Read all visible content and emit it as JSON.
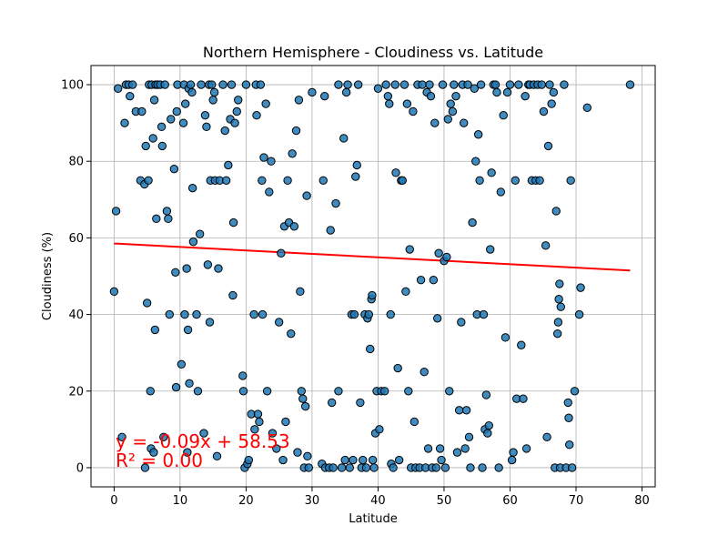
{
  "chart_data": {
    "type": "scatter",
    "title": "Northern Hemisphere - Cloudiness vs. Latitude",
    "xlabel": "Latitude",
    "ylabel": "Cloudiness (%)",
    "xlim": [
      -3.5,
      82
    ],
    "ylim": [
      -5,
      105
    ],
    "xticks": [
      0,
      10,
      20,
      30,
      40,
      50,
      60,
      70,
      80
    ],
    "yticks": [
      0,
      20,
      40,
      60,
      80,
      100
    ],
    "grid": true,
    "point_color": "#1f77b4",
    "point_edge_color": "#000000",
    "regression": {
      "slope": -0.09,
      "intercept": 58.53,
      "x_range": [
        0,
        78.2
      ],
      "color": "#ff0000",
      "equation_text": "y = -0.09x + 58.53",
      "r2_text": "R² = 0.00"
    },
    "points": [
      [
        0.0,
        46
      ],
      [
        0.3,
        67
      ],
      [
        0.6,
        99
      ],
      [
        1.2,
        8
      ],
      [
        1.6,
        90
      ],
      [
        1.8,
        100
      ],
      [
        2.2,
        100
      ],
      [
        2.4,
        97
      ],
      [
        2.8,
        100
      ],
      [
        3.3,
        93
      ],
      [
        4.0,
        75
      ],
      [
        4.2,
        93
      ],
      [
        4.6,
        74
      ],
      [
        4.7,
        0
      ],
      [
        4.8,
        84
      ],
      [
        5.0,
        43
      ],
      [
        5.2,
        75
      ],
      [
        5.3,
        100
      ],
      [
        5.5,
        20
      ],
      [
        5.6,
        5
      ],
      [
        5.7,
        100
      ],
      [
        5.9,
        86
      ],
      [
        6.0,
        4
      ],
      [
        6.1,
        96
      ],
      [
        6.2,
        36
      ],
      [
        6.3,
        100
      ],
      [
        6.4,
        65
      ],
      [
        6.6,
        100
      ],
      [
        7.0,
        100
      ],
      [
        7.2,
        89
      ],
      [
        7.3,
        84
      ],
      [
        7.5,
        8
      ],
      [
        7.7,
        100
      ],
      [
        8.0,
        67
      ],
      [
        8.2,
        65
      ],
      [
        8.4,
        40
      ],
      [
        8.6,
        91
      ],
      [
        9.1,
        78
      ],
      [
        9.3,
        51
      ],
      [
        9.4,
        21
      ],
      [
        9.5,
        93
      ],
      [
        9.6,
        100
      ],
      [
        10.2,
        27
      ],
      [
        10.5,
        90
      ],
      [
        10.6,
        100
      ],
      [
        10.7,
        40
      ],
      [
        10.8,
        95
      ],
      [
        11.0,
        52
      ],
      [
        11.1,
        4
      ],
      [
        11.2,
        36
      ],
      [
        11.3,
        99
      ],
      [
        11.4,
        22
      ],
      [
        11.6,
        100
      ],
      [
        11.8,
        98
      ],
      [
        11.9,
        73
      ],
      [
        12.0,
        59
      ],
      [
        12.5,
        40
      ],
      [
        12.7,
        20
      ],
      [
        13.0,
        61
      ],
      [
        13.2,
        100
      ],
      [
        13.6,
        9
      ],
      [
        13.8,
        92
      ],
      [
        14.0,
        89
      ],
      [
        14.2,
        53
      ],
      [
        14.4,
        100
      ],
      [
        14.5,
        38
      ],
      [
        14.6,
        75
      ],
      [
        14.8,
        100
      ],
      [
        15.0,
        96
      ],
      [
        15.2,
        98
      ],
      [
        15.3,
        75
      ],
      [
        15.6,
        3
      ],
      [
        15.8,
        52
      ],
      [
        16.0,
        75
      ],
      [
        16.5,
        100
      ],
      [
        16.8,
        88
      ],
      [
        17.0,
        75
      ],
      [
        17.3,
        79
      ],
      [
        17.6,
        91
      ],
      [
        17.8,
        100
      ],
      [
        18.0,
        45
      ],
      [
        18.1,
        64
      ],
      [
        18.3,
        90
      ],
      [
        18.6,
        93
      ],
      [
        18.8,
        96
      ],
      [
        19.5,
        24
      ],
      [
        19.6,
        20
      ],
      [
        19.8,
        0
      ],
      [
        20.0,
        100
      ],
      [
        20.2,
        1
      ],
      [
        20.4,
        2
      ],
      [
        20.8,
        14
      ],
      [
        21.2,
        40
      ],
      [
        21.3,
        10
      ],
      [
        21.5,
        100
      ],
      [
        21.6,
        92
      ],
      [
        21.8,
        14
      ],
      [
        22.0,
        12
      ],
      [
        22.2,
        100
      ],
      [
        22.4,
        75
      ],
      [
        22.5,
        40
      ],
      [
        22.7,
        81
      ],
      [
        23.0,
        95
      ],
      [
        23.2,
        20
      ],
      [
        23.5,
        72
      ],
      [
        23.8,
        80
      ],
      [
        24.0,
        9
      ],
      [
        24.6,
        5
      ],
      [
        25.0,
        38
      ],
      [
        25.3,
        56
      ],
      [
        25.6,
        2
      ],
      [
        25.8,
        63
      ],
      [
        26.0,
        12
      ],
      [
        26.3,
        75
      ],
      [
        26.5,
        64
      ],
      [
        26.8,
        35
      ],
      [
        27.0,
        82
      ],
      [
        27.3,
        63
      ],
      [
        27.6,
        88
      ],
      [
        27.8,
        4
      ],
      [
        28.0,
        96
      ],
      [
        28.2,
        46
      ],
      [
        28.4,
        20
      ],
      [
        28.6,
        18
      ],
      [
        28.8,
        0
      ],
      [
        29.0,
        16
      ],
      [
        29.2,
        71
      ],
      [
        29.3,
        3
      ],
      [
        29.5,
        0
      ],
      [
        30.0,
        98
      ],
      [
        31.5,
        1
      ],
      [
        31.7,
        75
      ],
      [
        31.9,
        97
      ],
      [
        32.0,
        0
      ],
      [
        32.6,
        0
      ],
      [
        32.8,
        62
      ],
      [
        33.0,
        17
      ],
      [
        33.2,
        0
      ],
      [
        33.6,
        69
      ],
      [
        34.0,
        20
      ],
      [
        34.0,
        100
      ],
      [
        34.5,
        0
      ],
      [
        34.8,
        86
      ],
      [
        35.0,
        2
      ],
      [
        35.2,
        98
      ],
      [
        35.4,
        100
      ],
      [
        35.7,
        0
      ],
      [
        36.0,
        40
      ],
      [
        36.2,
        2
      ],
      [
        36.4,
        40
      ],
      [
        36.6,
        76
      ],
      [
        36.8,
        79
      ],
      [
        37.0,
        100
      ],
      [
        37.3,
        17
      ],
      [
        37.5,
        0
      ],
      [
        37.7,
        2
      ],
      [
        38.0,
        40
      ],
      [
        38.2,
        0
      ],
      [
        38.4,
        39
      ],
      [
        38.6,
        40
      ],
      [
        38.8,
        31
      ],
      [
        39.0,
        44
      ],
      [
        39.1,
        45
      ],
      [
        39.2,
        2
      ],
      [
        39.4,
        0
      ],
      [
        39.6,
        9
      ],
      [
        39.8,
        20
      ],
      [
        40.0,
        99
      ],
      [
        40.2,
        10
      ],
      [
        40.5,
        20
      ],
      [
        41.0,
        20
      ],
      [
        41.2,
        100
      ],
      [
        41.5,
        97
      ],
      [
        41.7,
        95
      ],
      [
        41.9,
        40
      ],
      [
        42.0,
        1
      ],
      [
        42.3,
        0
      ],
      [
        42.6,
        100
      ],
      [
        42.7,
        77
      ],
      [
        43.0,
        26
      ],
      [
        43.2,
        2
      ],
      [
        43.5,
        75
      ],
      [
        43.7,
        75
      ],
      [
        44.0,
        100
      ],
      [
        44.2,
        46
      ],
      [
        44.4,
        95
      ],
      [
        44.6,
        20
      ],
      [
        44.8,
        57
      ],
      [
        45.0,
        0
      ],
      [
        45.3,
        93
      ],
      [
        45.5,
        12
      ],
      [
        45.7,
        0
      ],
      [
        46.0,
        100
      ],
      [
        46.3,
        0
      ],
      [
        46.5,
        49
      ],
      [
        46.7,
        100
      ],
      [
        47.0,
        25
      ],
      [
        47.2,
        0
      ],
      [
        47.4,
        98
      ],
      [
        47.6,
        5
      ],
      [
        47.8,
        100
      ],
      [
        48.0,
        97
      ],
      [
        48.2,
        0
      ],
      [
        48.4,
        49
      ],
      [
        48.6,
        90
      ],
      [
        48.8,
        0
      ],
      [
        49.0,
        39
      ],
      [
        49.2,
        56
      ],
      [
        49.4,
        5
      ],
      [
        49.6,
        2
      ],
      [
        49.8,
        100
      ],
      [
        50.0,
        54
      ],
      [
        50.2,
        0
      ],
      [
        50.4,
        55
      ],
      [
        50.6,
        91
      ],
      [
        50.8,
        20
      ],
      [
        51.0,
        95
      ],
      [
        51.3,
        93
      ],
      [
        51.5,
        100
      ],
      [
        51.8,
        97
      ],
      [
        52.0,
        4
      ],
      [
        52.3,
        15
      ],
      [
        52.6,
        38
      ],
      [
        52.8,
        100
      ],
      [
        53.0,
        90
      ],
      [
        53.2,
        5
      ],
      [
        53.4,
        15
      ],
      [
        53.6,
        100
      ],
      [
        53.8,
        8
      ],
      [
        54.0,
        0
      ],
      [
        54.3,
        64
      ],
      [
        54.6,
        99
      ],
      [
        54.8,
        80
      ],
      [
        55.0,
        40
      ],
      [
        55.2,
        87
      ],
      [
        55.4,
        75
      ],
      [
        55.6,
        100
      ],
      [
        55.8,
        0
      ],
      [
        56.0,
        40
      ],
      [
        56.2,
        10
      ],
      [
        56.4,
        19
      ],
      [
        56.6,
        9
      ],
      [
        56.8,
        11
      ],
      [
        57.0,
        57
      ],
      [
        57.2,
        77
      ],
      [
        57.5,
        100
      ],
      [
        57.8,
        100
      ],
      [
        58.0,
        98
      ],
      [
        58.3,
        0
      ],
      [
        58.6,
        72
      ],
      [
        59.0,
        92
      ],
      [
        59.3,
        34
      ],
      [
        59.6,
        98
      ],
      [
        60.0,
        100
      ],
      [
        60.3,
        2
      ],
      [
        60.5,
        4
      ],
      [
        60.8,
        75
      ],
      [
        61.0,
        18
      ],
      [
        61.3,
        100
      ],
      [
        61.7,
        32
      ],
      [
        62.0,
        18
      ],
      [
        62.3,
        97
      ],
      [
        62.5,
        5
      ],
      [
        62.8,
        100
      ],
      [
        63.0,
        100
      ],
      [
        63.3,
        75
      ],
      [
        63.6,
        100
      ],
      [
        63.9,
        75
      ],
      [
        64.2,
        100
      ],
      [
        64.5,
        75
      ],
      [
        64.8,
        100
      ],
      [
        65.1,
        93
      ],
      [
        65.4,
        58
      ],
      [
        65.6,
        8
      ],
      [
        65.8,
        84
      ],
      [
        66.0,
        100
      ],
      [
        66.3,
        95
      ],
      [
        66.6,
        98
      ],
      [
        66.8,
        0
      ],
      [
        67.0,
        67
      ],
      [
        67.2,
        35
      ],
      [
        67.3,
        38
      ],
      [
        67.4,
        44
      ],
      [
        67.5,
        48
      ],
      [
        67.6,
        0
      ],
      [
        67.7,
        42
      ],
      [
        68.2,
        100
      ],
      [
        68.5,
        0
      ],
      [
        68.8,
        17
      ],
      [
        68.9,
        13
      ],
      [
        69.0,
        6
      ],
      [
        69.2,
        75
      ],
      [
        69.4,
        0
      ],
      [
        69.8,
        20
      ],
      [
        70.5,
        40
      ],
      [
        70.7,
        47
      ],
      [
        71.7,
        94
      ],
      [
        78.2,
        100
      ]
    ]
  }
}
